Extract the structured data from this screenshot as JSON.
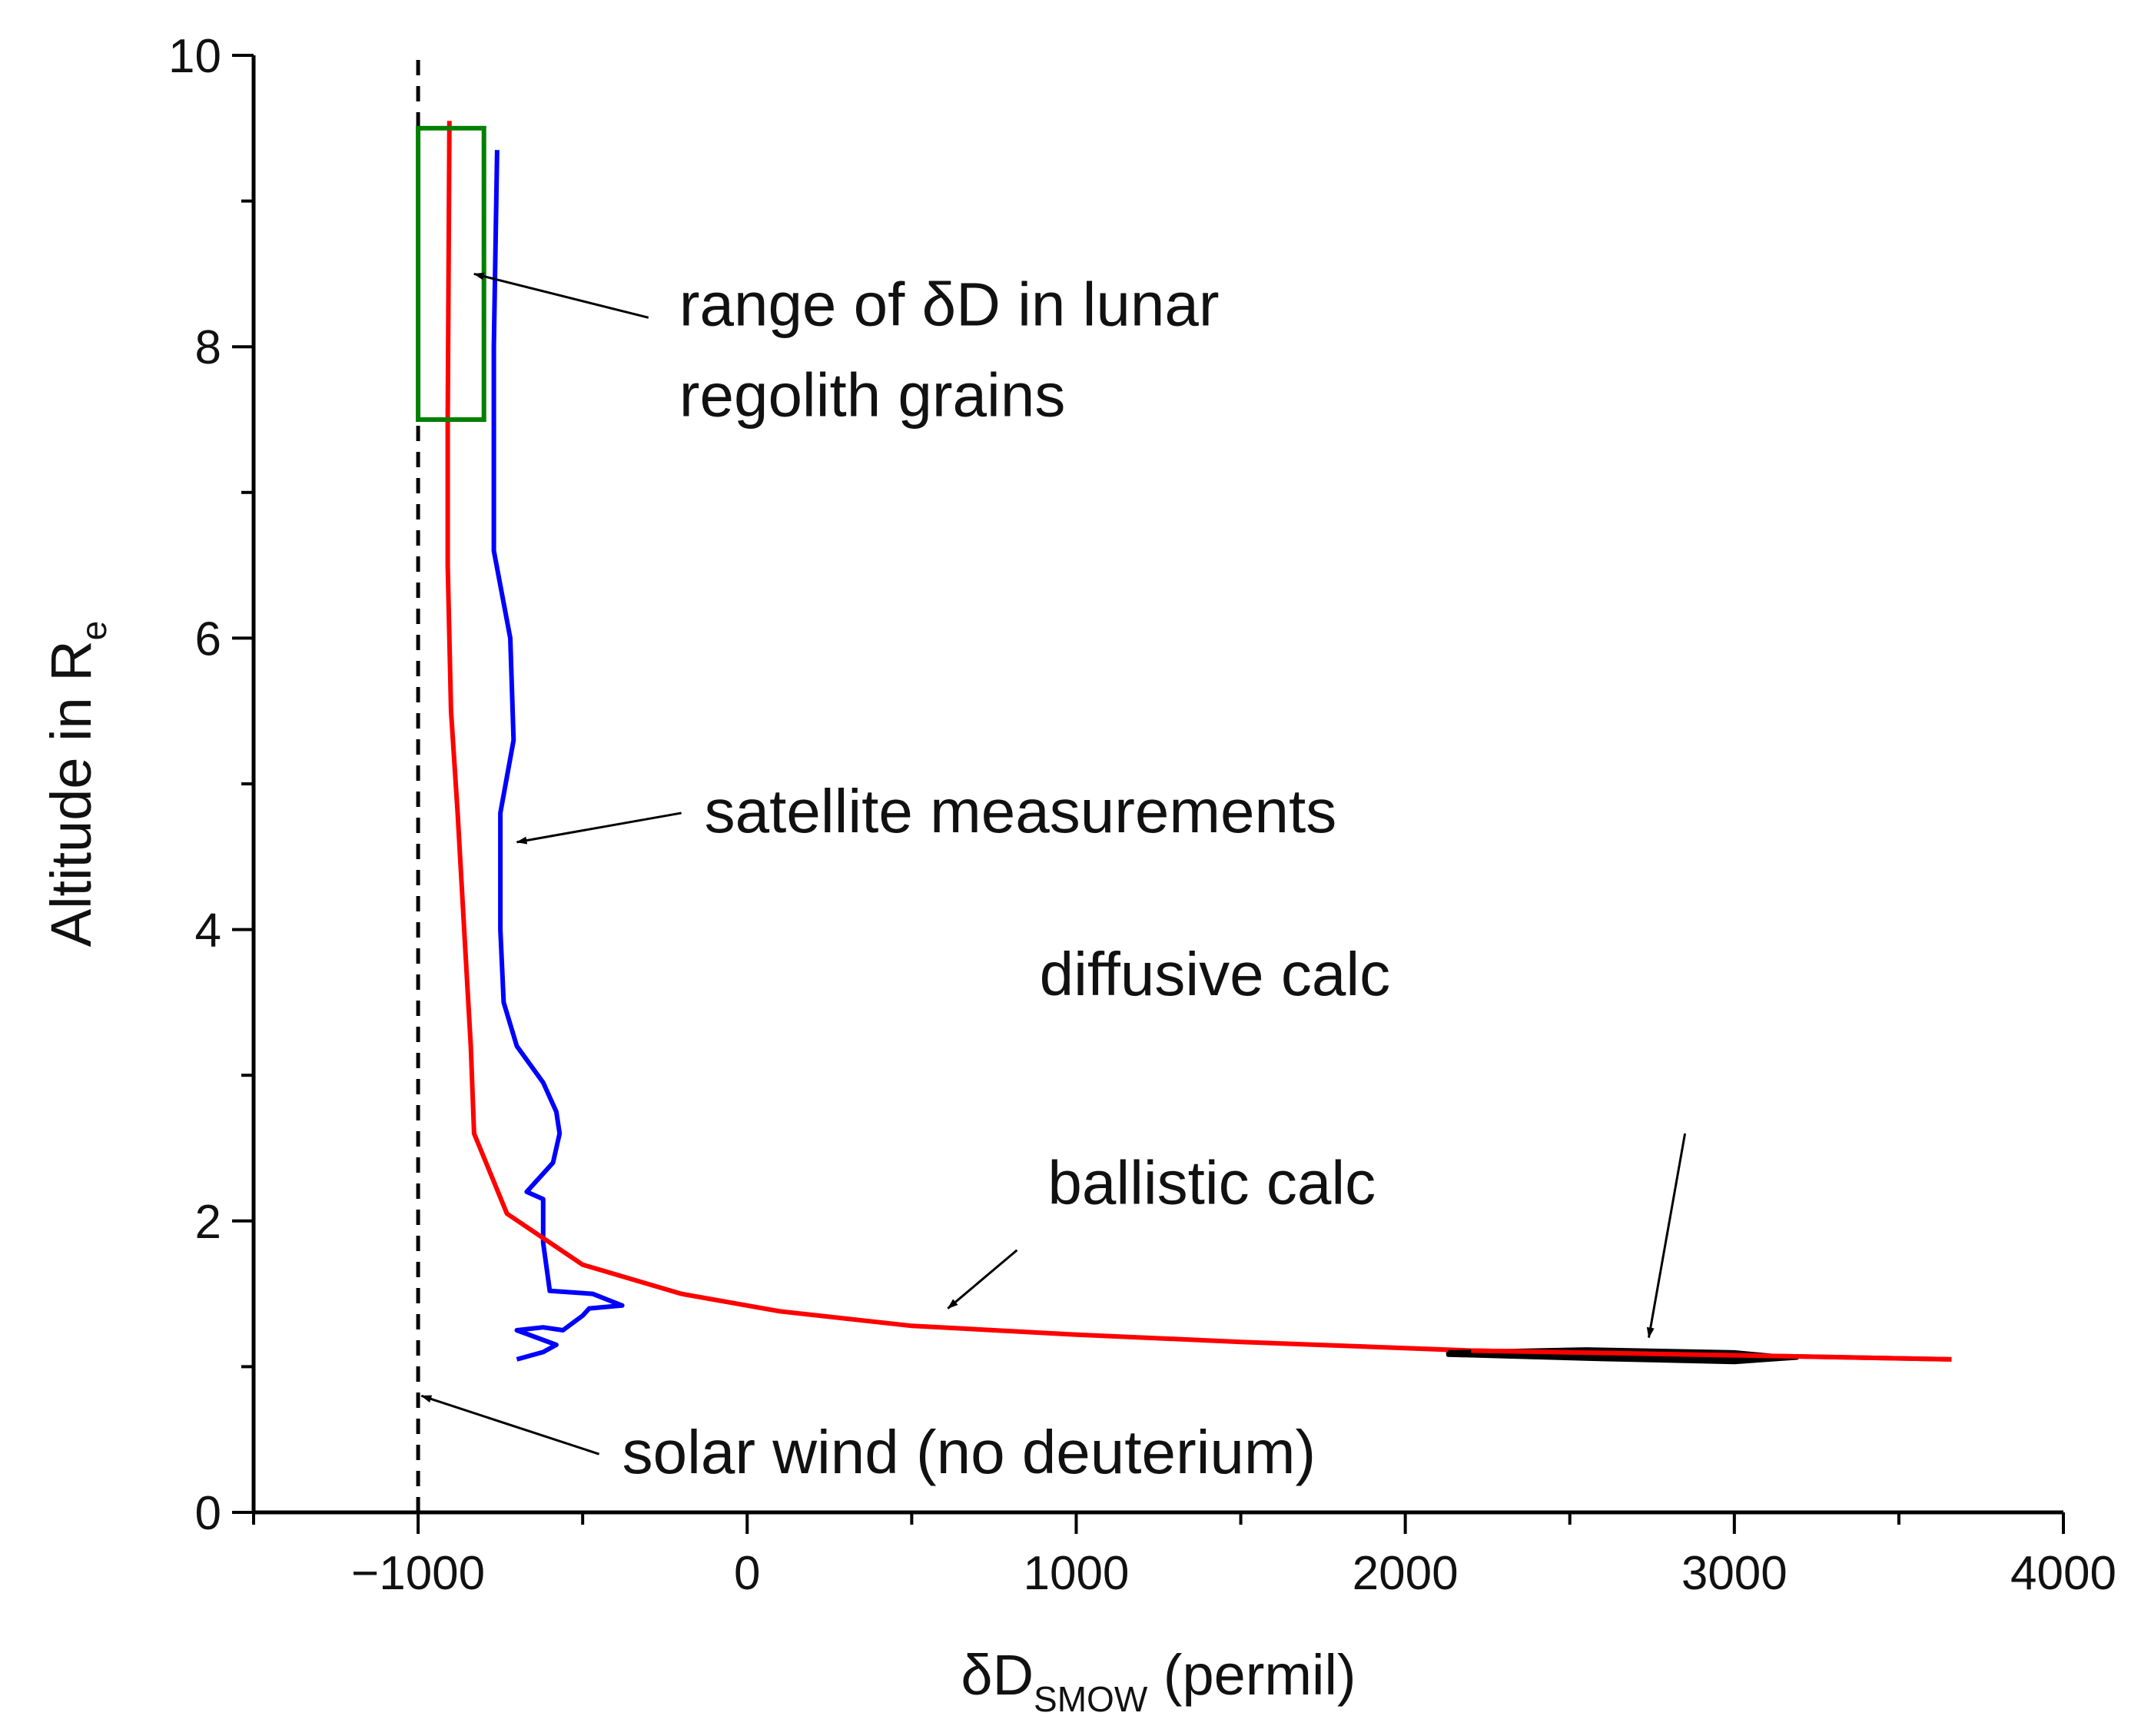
{
  "chart_data": {
    "type": "line",
    "title": "",
    "xlabel": {
      "main": "δD",
      "sub": "SMOW",
      "rest": " (permil)"
    },
    "ylabel": {
      "main": "Altitude in R",
      "sub": "e"
    },
    "xlim": [
      -1500,
      4000
    ],
    "ylim": [
      0,
      10
    ],
    "x_ticks": [
      -1000,
      0,
      1000,
      2000,
      3000,
      4000
    ],
    "x_tick_labels": [
      "−1000",
      "0",
      "1000",
      "2000",
      "3000",
      "4000"
    ],
    "y_ticks": [
      0,
      2,
      4,
      6,
      8,
      10
    ],
    "y_tick_labels": [
      "0",
      "2",
      "4",
      "6",
      "8",
      "10"
    ],
    "series": [
      {
        "name": "satellite measurements",
        "color": "#0000ff",
        "points": [
          [
            -700,
            1.05
          ],
          [
            -620,
            1.1
          ],
          [
            -580,
            1.15
          ],
          [
            -640,
            1.2
          ],
          [
            -700,
            1.25
          ],
          [
            -620,
            1.27
          ],
          [
            -560,
            1.25
          ],
          [
            -500,
            1.35
          ],
          [
            -480,
            1.4
          ],
          [
            -380,
            1.42
          ],
          [
            -470,
            1.5
          ],
          [
            -600,
            1.52
          ],
          [
            -620,
            1.85
          ],
          [
            -620,
            2.15
          ],
          [
            -670,
            2.2
          ],
          [
            -590,
            2.4
          ],
          [
            -570,
            2.6
          ],
          [
            -580,
            2.75
          ],
          [
            -620,
            2.95
          ],
          [
            -700,
            3.2
          ],
          [
            -740,
            3.5
          ],
          [
            -750,
            4.0
          ],
          [
            -750,
            4.8
          ],
          [
            -710,
            5.3
          ],
          [
            -720,
            6.0
          ],
          [
            -770,
            6.6
          ],
          [
            -770,
            8.0
          ],
          [
            -760,
            9.35
          ]
        ]
      },
      {
        "name": "ballistic calc",
        "color": "#ff0000",
        "points": [
          [
            3660,
            1.05
          ],
          [
            3200,
            1.07
          ],
          [
            2700,
            1.09
          ],
          [
            2200,
            1.11
          ],
          [
            1500,
            1.17
          ],
          [
            1000,
            1.22
          ],
          [
            500,
            1.28
          ],
          [
            100,
            1.38
          ],
          [
            -200,
            1.5
          ],
          [
            -500,
            1.7
          ],
          [
            -730,
            2.05
          ],
          [
            -830,
            2.6
          ],
          [
            -840,
            3.2
          ],
          [
            -860,
            4.0
          ],
          [
            -880,
            4.8
          ],
          [
            -900,
            5.5
          ],
          [
            -910,
            6.5
          ],
          [
            -910,
            7.5
          ],
          [
            -905,
            9.55
          ]
        ]
      },
      {
        "name": "diffusive calc",
        "color": "#000000",
        "points": [
          [
            2130,
            1.1
          ],
          [
            2550,
            1.12
          ],
          [
            3000,
            1.1
          ],
          [
            3190,
            1.06
          ],
          [
            3000,
            1.03
          ],
          [
            2600,
            1.05
          ],
          [
            2130,
            1.08
          ],
          [
            2130,
            1.1
          ]
        ]
      },
      {
        "name": "solar wind (no deuterium)",
        "color": "#000000",
        "style": "dashed",
        "points": [
          [
            -1000,
            0
          ],
          [
            -1000,
            10
          ]
        ]
      }
    ],
    "box": {
      "name": "range of δD in lunar regolith grains",
      "color": "#008000",
      "x": [
        -1000,
        -800
      ],
      "y": [
        7.5,
        9.5
      ]
    },
    "annotations": [
      {
        "key": "regolith",
        "lines": [
          "range of δD in lunar",
          "regolith grains"
        ],
        "anchor": [
          -300,
          8.2
        ],
        "target": [
          -830,
          8.5
        ]
      },
      {
        "key": "satellite",
        "lines": [
          "satellite measurements"
        ],
        "anchor": [
          -200,
          4.8
        ],
        "target": [
          -700,
          4.6
        ]
      },
      {
        "key": "diffusive",
        "lines": [
          "diffusive calc"
        ],
        "anchor": [
          2850,
          2.6
        ],
        "target": [
          2740,
          1.2
        ]
      },
      {
        "key": "ballistic",
        "lines": [
          "ballistic calc"
        ],
        "anchor": [
          820,
          1.8
        ],
        "target": [
          610,
          1.4
        ]
      },
      {
        "key": "solarwind",
        "lines": [
          "solar wind (no deuterium)"
        ],
        "anchor": [
          -450,
          0.4
        ],
        "target": [
          -990,
          0.8
        ]
      }
    ]
  }
}
